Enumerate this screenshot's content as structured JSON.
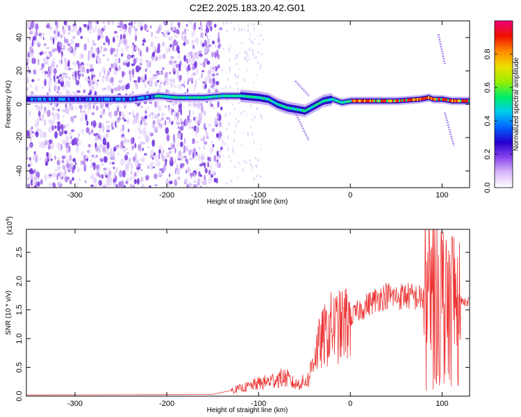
{
  "title": "C2E2.2025.183.20.42.G01",
  "chart_data": [
    {
      "type": "heatmap",
      "xlabel": "Height of straight line (km)",
      "ylabel": "Frequency (Hz)",
      "xlim": [
        -353,
        130
      ],
      "ylim": [
        -50,
        50
      ],
      "xticks": [
        -300,
        -200,
        -100,
        0,
        100
      ],
      "yticks": [
        -40,
        -20,
        0,
        20,
        40
      ],
      "colorbar": {
        "label": "Normalized spectral amplitude",
        "range": [
          0.0,
          1.0
        ],
        "ticks": [
          "0.0",
          "0.2",
          "0.4",
          "0.6",
          "0.8"
        ],
        "colors": [
          "#ffffff",
          "#d8b8f8",
          "#8844ee",
          "#2200cc",
          "#0066ff",
          "#00ccee",
          "#00ee66",
          "#99ee00",
          "#eedd00",
          "#ff8800",
          "#ee1100",
          "#ee0077"
        ]
      },
      "ridge": {
        "x": [
          -345,
          -330,
          -300,
          -270,
          -240,
          -210,
          -190,
          -160,
          -140,
          -120,
          -100,
          -90,
          -80,
          -70,
          -60,
          -50,
          -40,
          -30,
          -20,
          -10,
          0,
          20,
          50,
          75,
          85,
          90,
          100,
          110,
          120,
          130
        ],
        "y": [
          3,
          3,
          3,
          3,
          3,
          5,
          4,
          4,
          5,
          5,
          4,
          3,
          0,
          -2,
          -3,
          -4,
          -1,
          2,
          3,
          1,
          2,
          2,
          2,
          3,
          4,
          3,
          3,
          2,
          2,
          2
        ]
      },
      "streaks": [
        {
          "x": [
            -60,
            -45
          ],
          "y": [
            14,
            5
          ]
        },
        {
          "x": [
            -60,
            -45
          ],
          "y": [
            -5,
            -22
          ]
        },
        {
          "x": [
            96,
            103
          ],
          "y": [
            42,
            24
          ]
        },
        {
          "x": [
            103,
            113
          ],
          "y": [
            -5,
            -25
          ]
        }
      ],
      "noise_region_xmax": -140
    },
    {
      "type": "line",
      "xlabel": "Height of straight line (km)",
      "ylabel": "SNR (10 * v/v)",
      "multiplier": "(x10",
      "multiplier_exp": "4",
      "xlim": [
        -353,
        130
      ],
      "ylim": [
        0,
        2.9
      ],
      "xticks": [
        -300,
        -200,
        -100,
        0,
        100
      ],
      "yticks": [
        "0.0",
        "0.5",
        "1.0",
        "1.5",
        "2.0",
        "2.5"
      ],
      "series": [
        {
          "color": "#ee3333",
          "envelope": {
            "x": [
              -353,
              -150,
              -130,
              -115,
              -100,
              -90,
              -80,
              -70,
              -60,
              -50,
              -45,
              -40,
              -30,
              -20,
              -10,
              0,
              10,
              20,
              30,
              40,
              50,
              60,
              70,
              80,
              82,
              84,
              90,
              98,
              100,
              104,
              108,
              112,
              116,
              120,
              130
            ],
            "y": [
              0.02,
              0.03,
              0.1,
              0.15,
              0.22,
              0.25,
              0.3,
              0.32,
              0.2,
              0.25,
              0.3,
              0.7,
              1.0,
              1.2,
              1.2,
              1.35,
              1.5,
              1.6,
              1.7,
              1.75,
              1.72,
              1.75,
              1.72,
              1.7,
              2.5,
              1.8,
              1.7,
              1.75,
              1.7,
              1.7,
              1.7,
              1.72,
              1.68,
              1.65,
              1.65
            ]
          }
        }
      ]
    }
  ]
}
